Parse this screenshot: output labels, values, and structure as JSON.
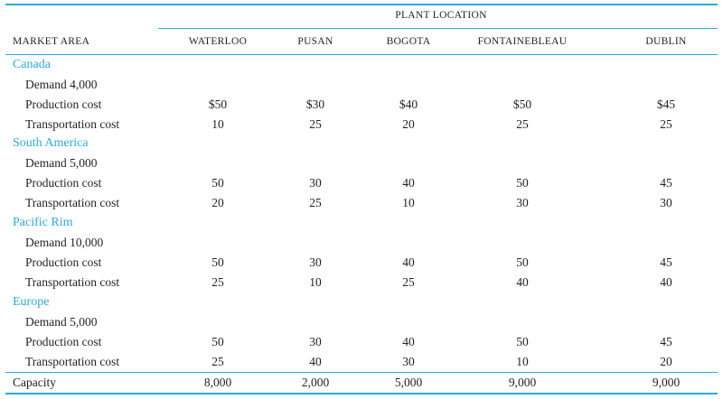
{
  "plant_location_label": "PLANT LOCATION",
  "market_area_label": "MARKET AREA",
  "plants": [
    "WATERLOO",
    "PUSAN",
    "BOGOTA",
    "FONTAINEBLEAU",
    "DUBLIN"
  ],
  "areas": [
    {
      "name": "Canada",
      "demand": "Demand 4,000",
      "rows": [
        {
          "label": "Production cost",
          "values": [
            "$50",
            "$30",
            "$40",
            "$50",
            "$45"
          ]
        },
        {
          "label": "Transportation cost",
          "values": [
            "10",
            "25",
            "20",
            "25",
            "25"
          ]
        }
      ]
    },
    {
      "name": "South America",
      "demand": "Demand 5,000",
      "rows": [
        {
          "label": "Production cost",
          "values": [
            "50",
            "30",
            "40",
            "50",
            "45"
          ]
        },
        {
          "label": "Transportation cost",
          "values": [
            "20",
            "25",
            "10",
            "30",
            "30"
          ]
        }
      ]
    },
    {
      "name": "Pacific Rim",
      "demand": "Demand 10,000",
      "rows": [
        {
          "label": "Production cost",
          "values": [
            "50",
            "30",
            "40",
            "50",
            "45"
          ]
        },
        {
          "label": "Transportation cost",
          "values": [
            "25",
            "10",
            "25",
            "40",
            "40"
          ]
        }
      ]
    },
    {
      "name": "Europe",
      "demand": "Demand 5,000",
      "rows": [
        {
          "label": "Production cost",
          "values": [
            "50",
            "30",
            "40",
            "50",
            "45"
          ]
        },
        {
          "label": "Transportation cost",
          "values": [
            "25",
            "40",
            "30",
            "10",
            "20"
          ]
        }
      ]
    }
  ],
  "capacity": {
    "label": "Capacity",
    "values": [
      "8,000",
      "2,000",
      "5,000",
      "9,000",
      "9,000"
    ]
  }
}
